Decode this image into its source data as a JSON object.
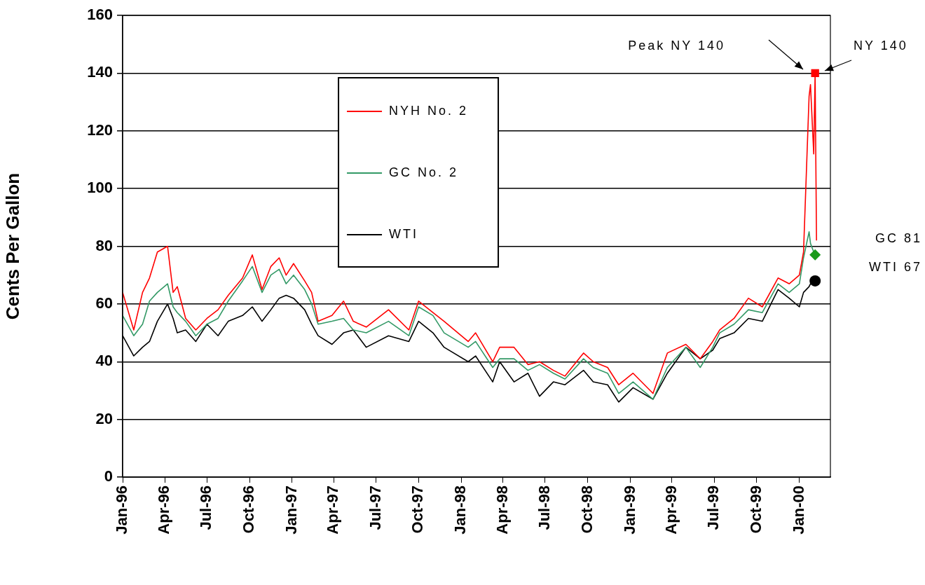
{
  "chart_data": {
    "type": "line",
    "ylabel": "Cents Per Gallon",
    "x": [
      "1996-01-01",
      "1996-01-25",
      "1996-02-13",
      "1996-02-28",
      "1996-03-16",
      "1996-04-07",
      "1996-04-19",
      "1996-04-28",
      "1996-05-16",
      "1996-06-07",
      "1996-07-01",
      "1996-07-25",
      "1996-08-16",
      "1996-09-16",
      "1996-10-07",
      "1996-10-28",
      "1996-11-16",
      "1996-12-04",
      "1996-12-19",
      "1997-01-04",
      "1997-01-28",
      "1997-02-12",
      "1997-02-26",
      "1997-03-28",
      "1997-04-22",
      "1997-05-13",
      "1997-06-10",
      "1997-07-28",
      "1997-09-10",
      "1997-10-01",
      "1997-11-01",
      "1997-11-25",
      "1998-01-16",
      "1998-02-01",
      "1998-03-10",
      "1998-03-25",
      "1998-04-25",
      "1998-05-25",
      "1998-06-19",
      "1998-07-19",
      "1998-08-13",
      "1998-09-22",
      "1998-10-13",
      "1998-11-13",
      "1998-12-07",
      "1999-01-07",
      "1999-02-19",
      "1999-03-22",
      "1999-05-01",
      "1999-06-01",
      "1999-06-28",
      "1999-07-13",
      "1999-08-13",
      "1999-09-13",
      "1999-10-13",
      "1999-11-16",
      "1999-12-10",
      "2000-01-01",
      "2000-01-10",
      "2000-01-22",
      "2000-01-25",
      "2000-02-01",
      "2000-02-04",
      "2000-02-07"
    ],
    "series": [
      {
        "name": "NYH No. 2",
        "color": "#ff0000",
        "values": [
          64,
          51,
          64,
          69,
          78,
          80,
          64,
          66,
          55,
          51,
          55,
          58,
          63,
          69,
          77,
          65,
          73,
          76,
          70,
          74,
          68,
          64,
          54,
          56,
          61,
          54,
          52,
          58,
          51,
          61,
          57,
          54,
          47,
          50,
          40,
          45,
          45,
          39,
          40,
          37,
          35,
          43,
          40,
          38,
          32,
          36,
          29,
          43,
          46,
          41,
          47,
          51,
          55,
          62,
          59,
          69,
          67,
          70,
          78,
          132,
          136,
          112,
          140,
          82
        ]
      },
      {
        "name": "GC No. 2",
        "color": "#339966",
        "values": [
          56,
          49,
          53,
          61,
          64,
          67,
          59,
          57,
          54,
          49,
          53,
          55,
          61,
          68,
          73,
          64,
          70,
          72,
          67,
          70,
          65,
          60,
          53,
          54,
          55,
          51,
          50,
          54,
          49,
          59,
          56,
          50,
          45,
          47,
          38,
          41,
          41,
          37,
          39,
          36,
          34,
          41,
          38,
          36,
          29,
          33,
          27,
          38,
          45,
          38,
          45,
          50,
          53,
          58,
          57,
          67,
          64,
          67,
          76,
          85,
          81,
          78,
          77,
          null
        ]
      },
      {
        "name": "WTI",
        "color": "#000000",
        "values": [
          49,
          42,
          45,
          47,
          54,
          60,
          55,
          50,
          51,
          47,
          53,
          49,
          54,
          56,
          59,
          54,
          58,
          62,
          63,
          62,
          58,
          53,
          49,
          46,
          50,
          51,
          45,
          49,
          47,
          54,
          50,
          45,
          40,
          42,
          33,
          40,
          33,
          36,
          28,
          33,
          32,
          37,
          33,
          32,
          26,
          31,
          27,
          36,
          45,
          41,
          44,
          48,
          50,
          55,
          54,
          65,
          62,
          59,
          64,
          66,
          67,
          68,
          68,
          null
        ]
      },
      {
        "type": "scatter",
        "marker": "square",
        "color": "#ff0000",
        "x": [
          "2000-02-04"
        ],
        "values": [
          140
        ]
      },
      {
        "type": "scatter",
        "marker": "diamond",
        "color": "#1a9a1a",
        "x": [
          "2000-02-04"
        ],
        "values": [
          77
        ]
      },
      {
        "type": "scatter",
        "marker": "circle",
        "color": "#000000",
        "x": [
          "2000-02-04"
        ],
        "values": [
          68
        ]
      }
    ],
    "xlim": [
      "1996-01-01",
      "2000-03-08"
    ],
    "xticks": [
      {
        "value": "1996-01-01",
        "label": "Jan-96"
      },
      {
        "value": "1996-04-01",
        "label": "Apr-96"
      },
      {
        "value": "1996-07-01",
        "label": "Jul-96"
      },
      {
        "value": "1996-10-01",
        "label": "Oct-96"
      },
      {
        "value": "1997-01-01",
        "label": "Jan-97"
      },
      {
        "value": "1997-04-01",
        "label": "Apr-97"
      },
      {
        "value": "1997-07-01",
        "label": "Jul-97"
      },
      {
        "value": "1997-10-01",
        "label": "Oct-97"
      },
      {
        "value": "1998-01-01",
        "label": "Jan-98"
      },
      {
        "value": "1998-04-01",
        "label": "Apr-98"
      },
      {
        "value": "1998-07-01",
        "label": "Jul-98"
      },
      {
        "value": "1998-10-01",
        "label": "Oct-98"
      },
      {
        "value": "1999-01-01",
        "label": "Jan-99"
      },
      {
        "value": "1999-04-01",
        "label": "Apr-99"
      },
      {
        "value": "1999-07-01",
        "label": "Jul-99"
      },
      {
        "value": "1999-10-01",
        "label": "Oct-99"
      },
      {
        "value": "2000-01-01",
        "label": "Jan-00"
      }
    ],
    "ylim": [
      0,
      160
    ],
    "yticks": [
      0,
      20,
      40,
      60,
      80,
      100,
      120,
      140,
      160
    ],
    "grid": "y",
    "legend": "top",
    "annotations": [
      "Peak NY 140",
      "NY 140",
      "GC 81",
      "WTI 67"
    ]
  }
}
